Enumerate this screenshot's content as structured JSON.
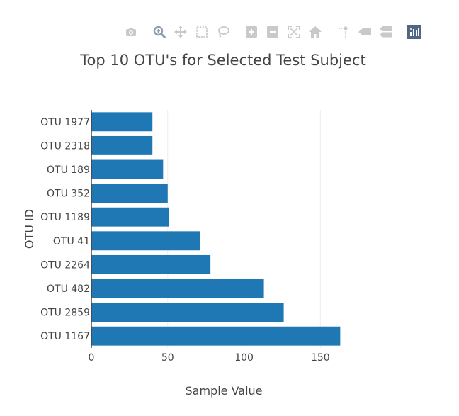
{
  "colors": {
    "bar": "#1f77b4",
    "grid": "#eeeeee",
    "text": "#444444",
    "modebar_icon": "#c9c9c9",
    "modebar_active": "#8d9eb3",
    "modebar_logo": "#506784"
  },
  "modebar": {
    "groups": [
      [
        "camera-icon"
      ],
      [
        "zoom-icon",
        "pan-icon",
        "box-select-icon",
        "lasso-select-icon"
      ],
      [
        "zoom-in-icon",
        "zoom-out-icon",
        "autoscale-icon",
        "reset-axes-icon"
      ],
      [
        "spike-lines-icon",
        "hover-closest-icon",
        "hover-compare-icon"
      ],
      [
        "plotly-logo-icon"
      ]
    ]
  },
  "chart_data": {
    "type": "bar",
    "orientation": "horizontal",
    "title": "Top 10 OTU's for Selected Test Subject",
    "xlabel": "Sample Value",
    "ylabel": "OTU ID",
    "categories": [
      "OTU 1977",
      "OTU 2318",
      "OTU 189",
      "OTU 352",
      "OTU 1189",
      "OTU 41",
      "OTU 2264",
      "OTU 482",
      "OTU 2859",
      "OTU 1167"
    ],
    "values": [
      40,
      40,
      47,
      50,
      51,
      71,
      78,
      113,
      126,
      163
    ],
    "xlim": [
      0,
      168.4
    ],
    "xticks": [
      0,
      50,
      100,
      150
    ],
    "xgrid": true,
    "ygrid": false
  }
}
